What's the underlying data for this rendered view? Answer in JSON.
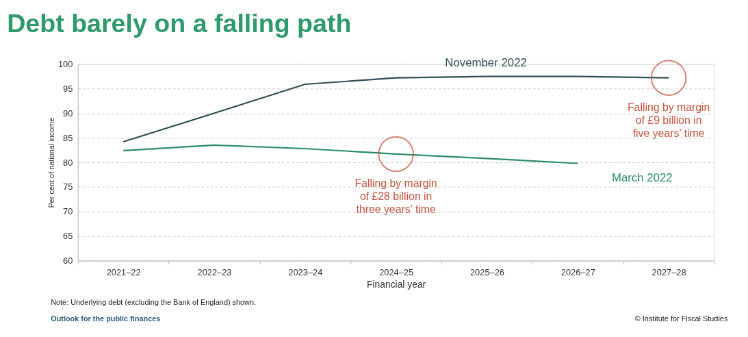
{
  "chart_data": {
    "type": "line",
    "title": "Debt barely on a falling path",
    "xlabel": "Financial year",
    "ylabel": "Per cent of national income",
    "categories": [
      "2021–22",
      "2022–23",
      "2023–24",
      "2024–25",
      "2025–26",
      "2026–27",
      "2027–28"
    ],
    "series": [
      {
        "name": "November 2022",
        "color": "#2f4f55",
        "values": [
          84.2,
          90.0,
          95.9,
          97.2,
          97.5,
          97.5,
          97.2
        ]
      },
      {
        "name": "March 2022",
        "color": "#2a8c6a",
        "values": [
          82.4,
          83.5,
          82.8,
          81.7,
          80.8,
          79.8,
          null
        ]
      }
    ],
    "ylim": [
      60,
      100
    ],
    "yticks": [
      60,
      65,
      70,
      75,
      80,
      85,
      90,
      95,
      100
    ],
    "grid": "y",
    "legend": false,
    "annotations": [
      {
        "text": "Falling by margin\nof £28 billion in\nthree years’ time",
        "x": "2024–25",
        "y": 81.7
      },
      {
        "text": "Falling by margin\nof £9 billion in\nfive years’ time",
        "x": "2027–28",
        "y": 97.2
      },
      "Note: Underlying debt (excluding the Bank of England) shown.",
      "Outlook for the public finances",
      "© Institute for Fiscal Studies"
    ]
  }
}
